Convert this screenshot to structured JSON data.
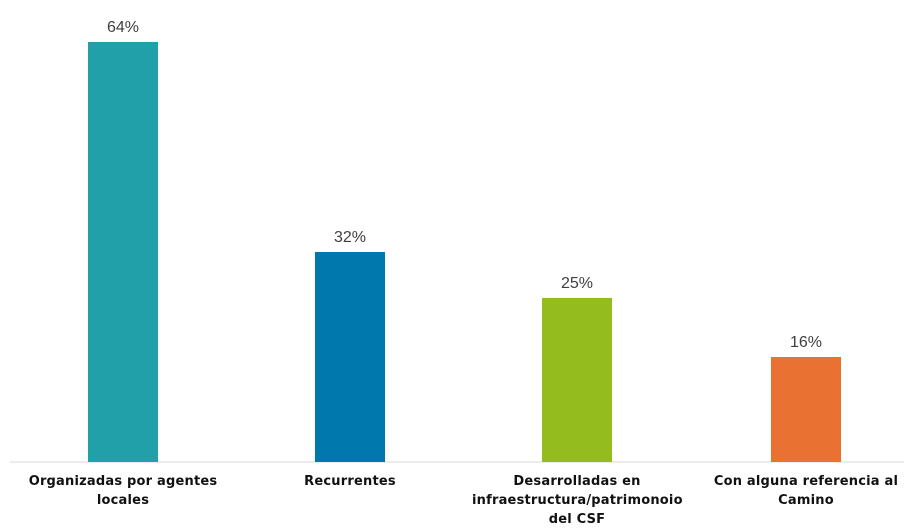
{
  "chart_data": {
    "type": "bar",
    "categories": [
      "Organizadas por agentes\nlocales",
      "Recurrentes",
      "Desarrolladas en\ninfraestructura/patrimonoio\ndel CSF",
      "Con alguna referencia al\nCamino"
    ],
    "values": [
      64,
      32,
      25,
      16
    ],
    "data_labels": [
      "64%",
      "32%",
      "25%",
      "16%"
    ],
    "colors": [
      "#22A0AA",
      "#0078AE",
      "#95BC1F",
      "#E97132"
    ],
    "ylim": [
      0,
      64
    ],
    "grid": false,
    "legend": "none"
  }
}
